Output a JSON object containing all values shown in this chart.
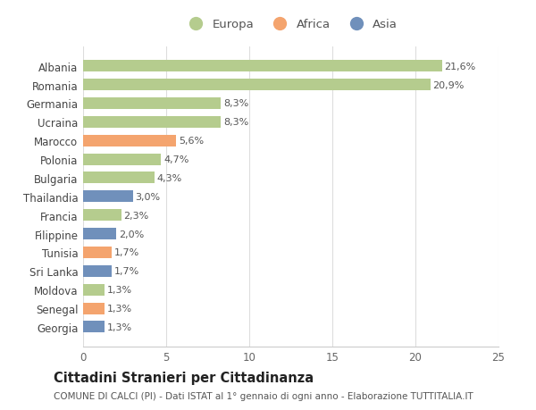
{
  "categories": [
    "Albania",
    "Romania",
    "Germania",
    "Ucraina",
    "Marocco",
    "Polonia",
    "Bulgaria",
    "Thailandia",
    "Francia",
    "Filippine",
    "Tunisia",
    "Sri Lanka",
    "Moldova",
    "Senegal",
    "Georgia"
  ],
  "values": [
    21.6,
    20.9,
    8.3,
    8.3,
    5.6,
    4.7,
    4.3,
    3.0,
    2.3,
    2.0,
    1.7,
    1.7,
    1.3,
    1.3,
    1.3
  ],
  "labels": [
    "21,6%",
    "20,9%",
    "8,3%",
    "8,3%",
    "5,6%",
    "4,7%",
    "4,3%",
    "3,0%",
    "2,3%",
    "2,0%",
    "1,7%",
    "1,7%",
    "1,3%",
    "1,3%",
    "1,3%"
  ],
  "continents": [
    "Europa",
    "Europa",
    "Europa",
    "Europa",
    "Africa",
    "Europa",
    "Europa",
    "Asia",
    "Europa",
    "Asia",
    "Africa",
    "Asia",
    "Europa",
    "Africa",
    "Asia"
  ],
  "colors": {
    "Europa": "#b5cc8e",
    "Africa": "#f4a46e",
    "Asia": "#7090bb"
  },
  "title": "Cittadini Stranieri per Cittadinanza",
  "subtitle": "COMUNE DI CALCI (PI) - Dati ISTAT al 1° gennaio di ogni anno - Elaborazione TUTTITALIA.IT",
  "xlim": [
    0,
    25
  ],
  "xticks": [
    0,
    5,
    10,
    15,
    20,
    25
  ],
  "background_color": "#ffffff",
  "plot_bg_color": "#ffffff",
  "grid_color": "#dddddd",
  "title_fontsize": 10.5,
  "subtitle_fontsize": 7.5,
  "label_fontsize": 8,
  "tick_fontsize": 8.5,
  "legend_fontsize": 9.5,
  "bar_height": 0.62
}
